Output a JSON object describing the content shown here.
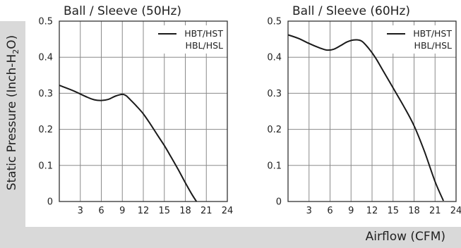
{
  "y_axis_label": {
    "prefix": "Static Pressure (Inch-H",
    "sub": "2",
    "suffix": "O)"
  },
  "x_axis_label": "Airflow (CFM)",
  "chart_data": [
    {
      "type": "line",
      "title": "Ball / Sleeve (50Hz)",
      "xlabel": "Airflow (CFM)",
      "ylabel": "Static Pressure (Inch-H2O)",
      "xlim": [
        0,
        24
      ],
      "ylim": [
        0,
        0.5
      ],
      "xticks": [
        3,
        6,
        9,
        12,
        15,
        18,
        21,
        24
      ],
      "yticks": [
        0,
        0.1,
        0.2,
        0.3,
        0.4,
        0.5
      ],
      "ytick_labels": [
        "0",
        "0.1",
        "0.2",
        "0.3",
        "0.4",
        "0.5"
      ],
      "grid": true,
      "legend": [
        "HBT/HST",
        "HBL/HSL"
      ],
      "legend_position": "top-right",
      "series": [
        {
          "name": "HBT/HST HBL/HSL",
          "x": [
            0,
            2,
            4,
            5,
            6,
            7,
            8,
            9,
            9.5,
            10,
            11,
            12,
            13,
            14,
            15,
            16,
            17,
            18,
            19,
            20,
            20.2
          ],
          "y": [
            0.322,
            0.307,
            0.289,
            0.282,
            0.28,
            0.283,
            0.292,
            0.297,
            0.294,
            0.285,
            0.265,
            0.243,
            0.215,
            0.185,
            0.155,
            0.122,
            0.088,
            0.052,
            0.018,
            -0.012,
            -0.018
          ]
        }
      ]
    },
    {
      "type": "line",
      "title": "Ball / Sleeve (60Hz)",
      "xlabel": "Airflow (CFM)",
      "ylabel": "Static Pressure (Inch-H2O)",
      "xlim": [
        0,
        24
      ],
      "ylim": [
        0,
        0.5
      ],
      "xticks": [
        3,
        6,
        9,
        12,
        15,
        18,
        21,
        24
      ],
      "yticks": [
        0,
        0.1,
        0.2,
        0.3,
        0.4,
        0.5
      ],
      "ytick_labels": [
        "0",
        "0.1",
        "0.2",
        "0.3",
        "0.4",
        "0.5"
      ],
      "grid": true,
      "legend": [
        "HBT/HST",
        "HBL/HSL"
      ],
      "legend_position": "top-right",
      "series": [
        {
          "name": "HBT/HST HBL/HSL",
          "x": [
            0,
            1.5,
            3,
            4.5,
            5.5,
            6.5,
            7.5,
            8.5,
            9.5,
            10.5,
            11.5,
            12.5,
            13.5,
            15,
            16.5,
            18,
            19.5,
            21,
            22.2
          ],
          "y": [
            0.462,
            0.452,
            0.438,
            0.426,
            0.42,
            0.422,
            0.432,
            0.443,
            0.448,
            0.445,
            0.425,
            0.398,
            0.365,
            0.315,
            0.265,
            0.21,
            0.138,
            0.055,
            0.002
          ]
        }
      ]
    }
  ]
}
